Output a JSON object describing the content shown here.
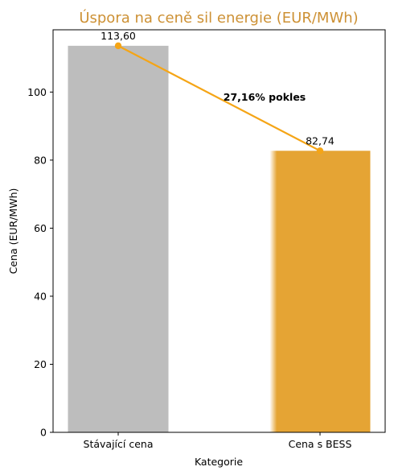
{
  "chart_data": {
    "type": "bar",
    "title": "Úspora na ceně sil energie (EUR/MWh)",
    "xlabel": "Kategorie",
    "ylabel": "Cena (EUR/MWh)",
    "categories": [
      "Stávající cena",
      "Cena s BESS"
    ],
    "values": [
      113.6,
      82.74
    ],
    "value_labels": [
      "113,60",
      "82,74"
    ],
    "ylim": [
      0,
      118.3
    ],
    "yticks": [
      0,
      20,
      40,
      60,
      80,
      100
    ],
    "ytick_labels": [
      "0",
      "20",
      "40",
      "60",
      "80",
      "100"
    ],
    "annotation": "27,16% pokles",
    "grid": false,
    "colors": {
      "title": "#cd9135",
      "bars": [
        "#bdbdbd",
        "#e5a434"
      ],
      "line": "#f5a516"
    }
  }
}
